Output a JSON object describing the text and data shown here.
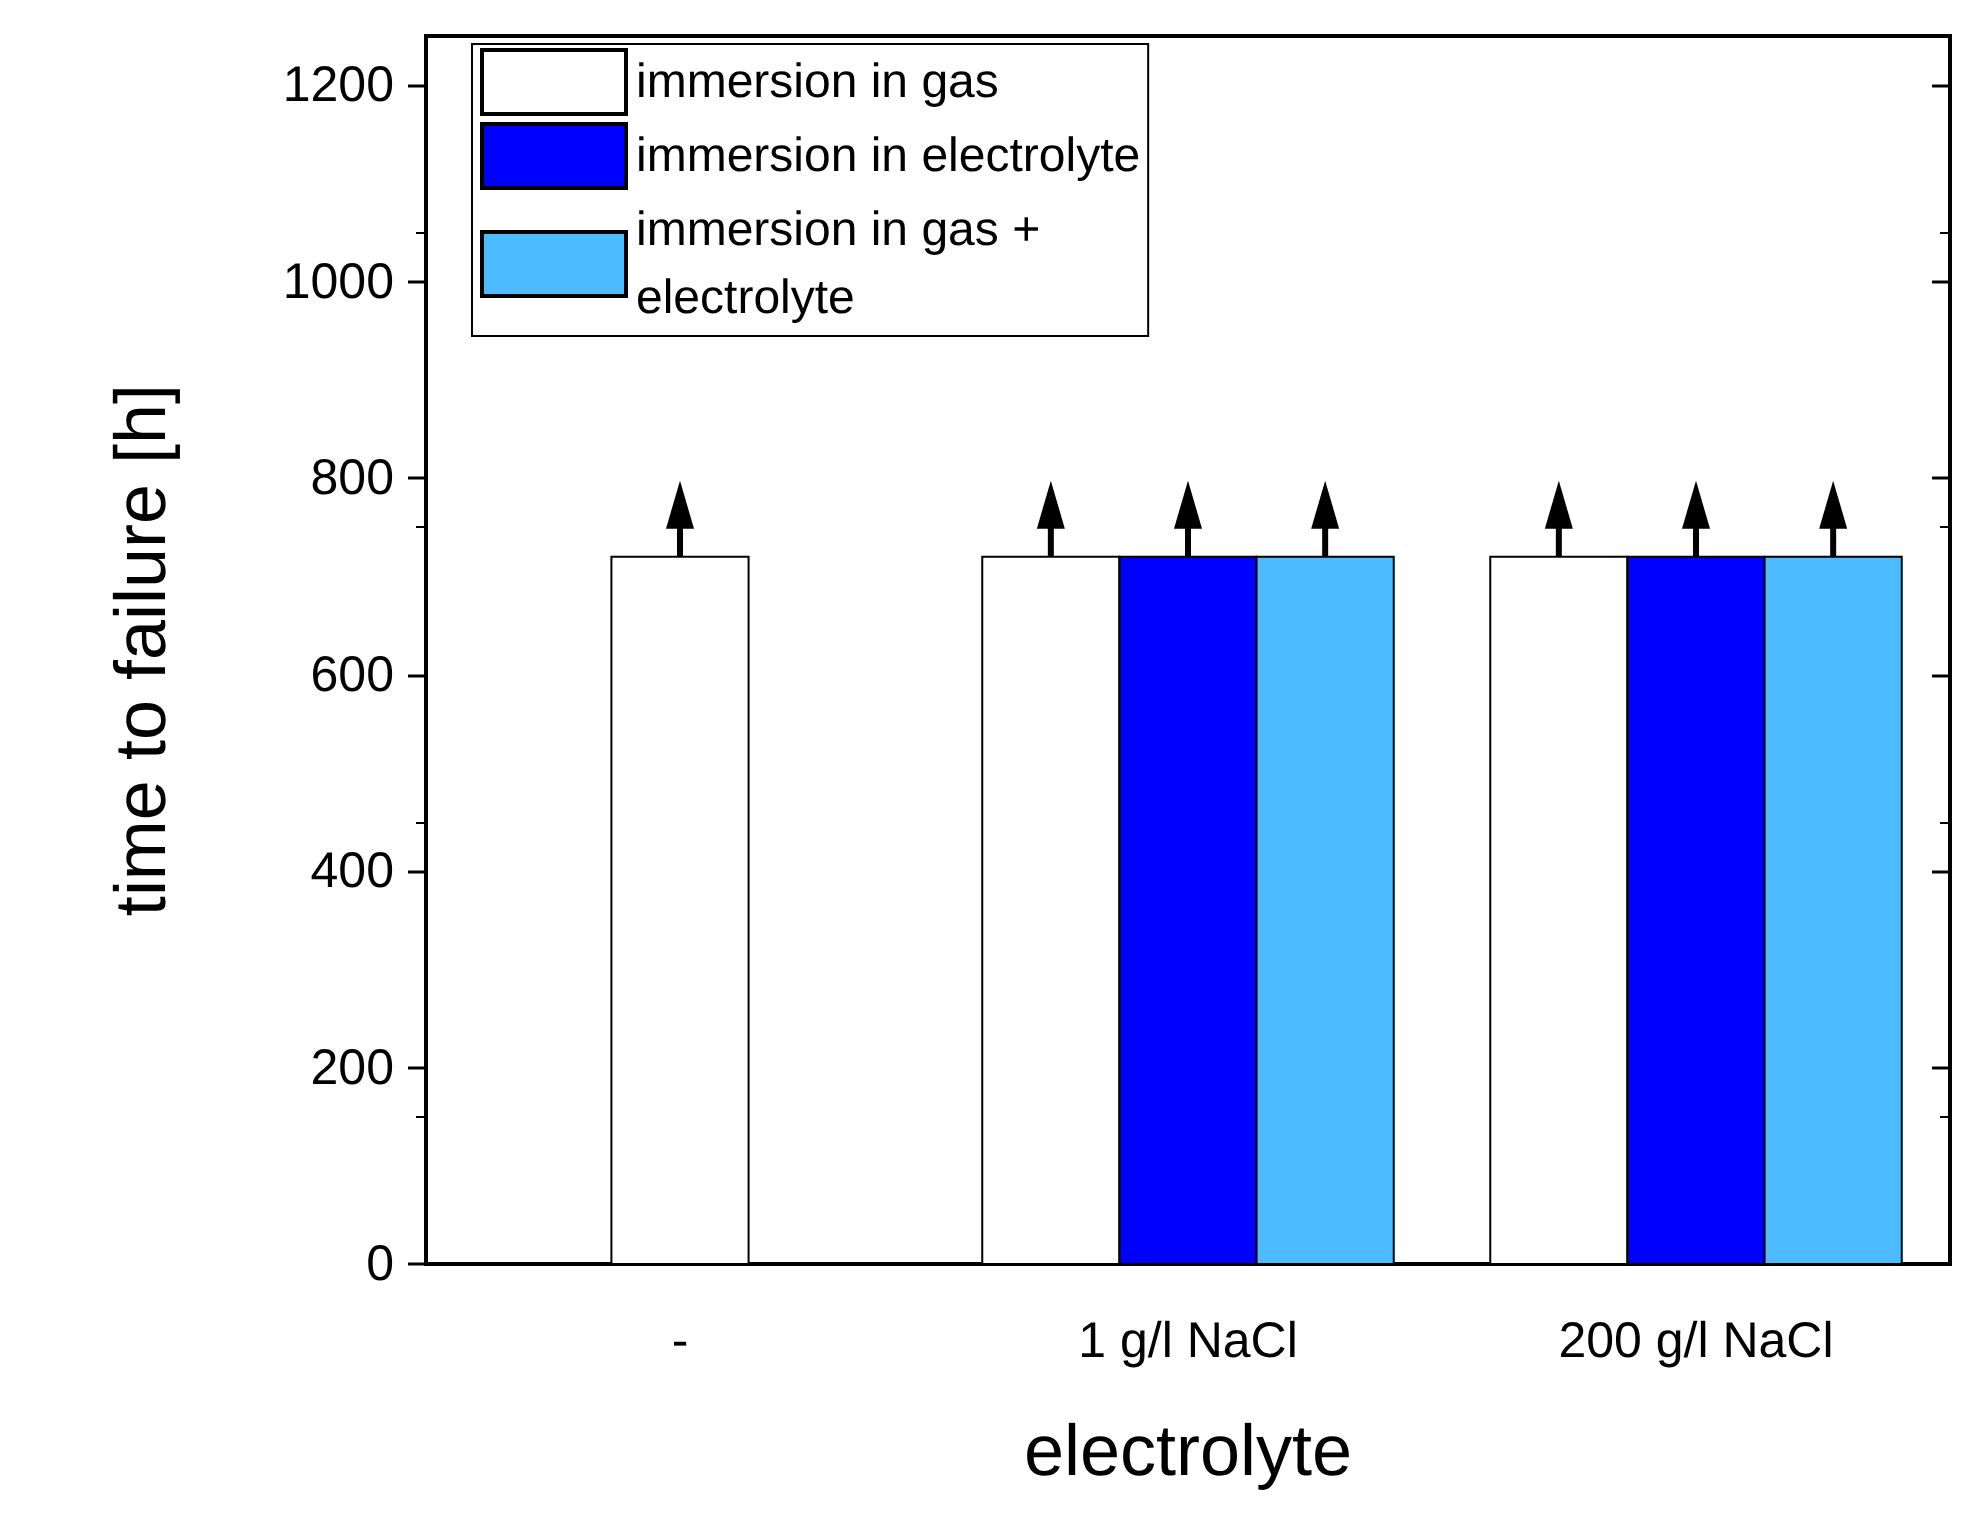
{
  "chart_data": {
    "type": "bar",
    "xlabel": "electrolyte",
    "ylabel": "time to failure [h]",
    "categories": [
      "-",
      "1 g/l NaCl",
      "200 g/l NaCl"
    ],
    "series": [
      {
        "name": "immersion in gas",
        "color": "#ffffff",
        "values": [
          720,
          720,
          720
        ]
      },
      {
        "name": "immersion in electrolyte",
        "color": "#0000ff",
        "values": [
          null,
          720,
          720
        ]
      },
      {
        "name": "immersion in gas + electrolyte",
        "color": "#4dbbff",
        "values": [
          null,
          720,
          720
        ]
      }
    ],
    "ylim": [
      0,
      1250
    ],
    "yticks": [
      0,
      200,
      400,
      600,
      800,
      1000,
      1200
    ],
    "grid": false,
    "legend": "top left"
  }
}
